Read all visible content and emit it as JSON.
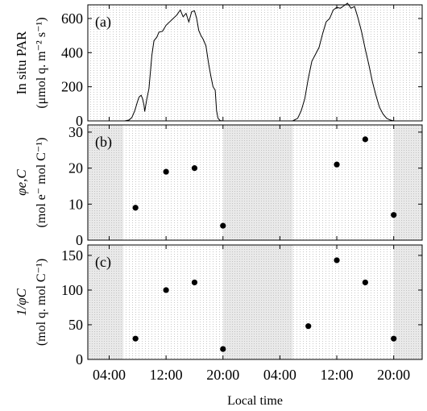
{
  "figure": {
    "xlabel": "Local time"
  },
  "chart_data": [
    {
      "panel": "(a)",
      "type": "area",
      "ylabel_lines": [
        "In situ PAR",
        "(μmol q. m⁻² s⁻¹)"
      ],
      "ylim": [
        0,
        680
      ],
      "yticks": [
        0,
        200,
        400,
        600
      ],
      "xlim_hours": [
        1.0,
        48.0
      ],
      "xticks": [
        "04:00",
        "12:00",
        "20:00",
        "04:00",
        "12:00",
        "20:00"
      ],
      "grid": "dotted",
      "series": [
        {
          "x_hours": [
            6.2,
            6.8,
            7.2,
            7.6,
            8.0,
            8.2,
            8.5,
            8.7,
            8.9,
            9.0,
            9.3,
            9.6,
            10.0,
            10.3,
            10.7,
            11.0,
            11.5,
            12.0,
            12.5,
            13.0,
            13.5,
            14.0,
            14.4,
            14.8,
            15.2,
            15.6,
            16.0,
            16.3,
            16.6,
            16.9,
            17.2,
            17.6,
            18.0,
            18.3,
            18.6,
            18.9,
            19.1,
            19.3,
            19.6,
            20.0
          ],
          "values": [
            0,
            5,
            20,
            60,
            115,
            140,
            150,
            130,
            90,
            55,
            130,
            190,
            385,
            470,
            490,
            520,
            525,
            560,
            580,
            600,
            620,
            650,
            610,
            630,
            580,
            640,
            645,
            600,
            530,
            500,
            480,
            440,
            330,
            260,
            200,
            180,
            60,
            15,
            2,
            0
          ]
        },
        {
          "x_hours": [
            29.8,
            30.5,
            31.0,
            31.5,
            32.0,
            32.5,
            33.0,
            33.5,
            34.0,
            34.5,
            35.0,
            35.5,
            36.0,
            36.5,
            37.0,
            37.5,
            38.0,
            38.5,
            39.0,
            39.5,
            40.0,
            40.5,
            41.0,
            41.5,
            42.0,
            42.5,
            43.0,
            43.5,
            44.0
          ],
          "values": [
            0,
            15,
            60,
            130,
            250,
            350,
            390,
            430,
            510,
            580,
            600,
            650,
            665,
            660,
            675,
            690,
            660,
            670,
            600,
            520,
            420,
            330,
            230,
            150,
            80,
            40,
            15,
            5,
            0
          ]
        }
      ]
    },
    {
      "panel": "(b)",
      "type": "scatter",
      "ylabel_lines": [
        "φe,C",
        "(mol e⁻ mol C⁻¹)"
      ],
      "ylim": [
        0,
        32
      ],
      "yticks": [
        0,
        10,
        20,
        30
      ],
      "night_shading_hours": [
        [
          1.0,
          6.0
        ],
        [
          20.0,
          29.8
        ],
        [
          44.0,
          48.0
        ]
      ],
      "x_hours": [
        7.7,
        12.0,
        16.0,
        20.0,
        36.0,
        40.0,
        44.0
      ],
      "values": [
        9,
        19,
        20,
        4,
        21,
        28,
        7
      ]
    },
    {
      "panel": "(c)",
      "type": "scatter",
      "ylabel_lines": [
        "1/φC",
        "(mol q. mol C⁻¹)"
      ],
      "ylim": [
        0,
        165
      ],
      "yticks": [
        0,
        50,
        100,
        150
      ],
      "night_shading_hours": [
        [
          1.0,
          6.0
        ],
        [
          20.0,
          29.8
        ],
        [
          44.0,
          48.0
        ]
      ],
      "x_hours": [
        7.7,
        12.0,
        16.0,
        20.0,
        32.0,
        36.0,
        40.0,
        44.0
      ],
      "values": [
        30,
        100,
        111,
        15,
        48,
        143,
        111,
        30
      ]
    }
  ]
}
